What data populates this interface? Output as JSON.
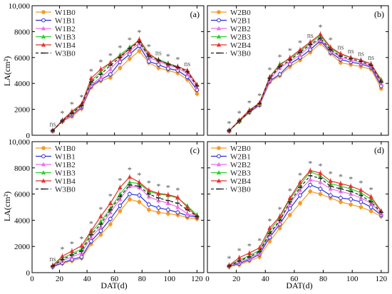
{
  "figure": {
    "ylabel": "LA(cm²)",
    "xlabel": "DAT(d)",
    "x_ticks": [
      0,
      20,
      40,
      60,
      80,
      100,
      120
    ],
    "y_ticks": [
      0,
      2000,
      4000,
      6000,
      8000,
      10000
    ],
    "y_tick_labels": [
      "0",
      "2000",
      "4000",
      "6000",
      "8000",
      "10,000"
    ]
  },
  "chart_data": [
    {
      "panel": "(a)",
      "type": "line",
      "xlim": [
        0,
        125
      ],
      "ylim": [
        0,
        10000
      ],
      "x": [
        15,
        22,
        29,
        36,
        43,
        50,
        57,
        64,
        71,
        78,
        85,
        92,
        99,
        106,
        113,
        120
      ],
      "series": [
        {
          "name": "W1B0",
          "color": "#f59a23",
          "marker": "circle-filled",
          "values": [
            350,
            1050,
            1450,
            2050,
            3700,
            4200,
            4450,
            5200,
            5900,
            6500,
            5600,
            5200,
            5000,
            4800,
            4300,
            3200
          ]
        },
        {
          "name": "W1B1",
          "color": "#2a2fd6",
          "marker": "circle-open",
          "values": [
            350,
            1100,
            1550,
            2150,
            3800,
            4300,
            4700,
            5650,
            6250,
            6900,
            5700,
            5450,
            5150,
            5000,
            4500,
            3500
          ]
        },
        {
          "name": "W1B2",
          "color": "#ee6fe6",
          "marker": "triangle",
          "values": [
            350,
            1100,
            1600,
            2200,
            3900,
            4450,
            5100,
            5900,
            6500,
            7100,
            6000,
            5700,
            5400,
            5200,
            4750,
            3700
          ]
        },
        {
          "name": "W1B3",
          "color": "#2fd02f",
          "marker": "triangle",
          "values": [
            350,
            1150,
            1750,
            2350,
            4200,
            4900,
            5600,
            6200,
            6800,
            7300,
            6200,
            5850,
            5550,
            5300,
            5000,
            3900
          ]
        },
        {
          "name": "W1B4",
          "color": "#e8312b",
          "marker": "triangle",
          "values": [
            350,
            1150,
            1850,
            2400,
            4400,
            5100,
            5600,
            6100,
            6650,
            7400,
            6300,
            5800,
            5500,
            5300,
            5000,
            3900
          ]
        },
        {
          "name": "W3B0",
          "color": "#222222",
          "marker": "dash",
          "values": [
            350,
            1100,
            1700,
            2300,
            4100,
            4700,
            5400,
            6000,
            6700,
            7200,
            6100,
            5800,
            5500,
            5250,
            4900,
            3800
          ]
        }
      ],
      "annotations": [
        "ns",
        "*",
        "*",
        "*",
        "*",
        "*",
        "*",
        "*",
        "*",
        "*",
        "*",
        "ns",
        "*",
        "*",
        "ns"
      ]
    },
    {
      "panel": "(b)",
      "type": "line",
      "xlim": [
        0,
        125
      ],
      "ylim": [
        0,
        10000
      ],
      "x": [
        15,
        22,
        29,
        36,
        43,
        50,
        57,
        64,
        71,
        78,
        85,
        92,
        99,
        106,
        113,
        120
      ],
      "series": [
        {
          "name": "W2B0",
          "color": "#f59a23",
          "marker": "circle-filled",
          "values": [
            350,
            1050,
            1750,
            2300,
            4100,
            4600,
            5300,
            5800,
            6400,
            7100,
            6300,
            5600,
            5450,
            5300,
            5100,
            3600
          ]
        },
        {
          "name": "W2B1",
          "color": "#2a2fd6",
          "marker": "circle-open",
          "values": [
            350,
            1100,
            1800,
            2350,
            4200,
            4700,
            5500,
            6000,
            6600,
            7300,
            6400,
            5850,
            5650,
            5500,
            5250,
            3800
          ]
        },
        {
          "name": "W2B2",
          "color": "#ee6fe6",
          "marker": "triangle",
          "values": [
            350,
            1100,
            1850,
            2400,
            4300,
            5200,
            5700,
            6200,
            6900,
            7400,
            6550,
            6000,
            5800,
            5600,
            5350,
            4000
          ]
        },
        {
          "name": "W2B3",
          "color": "#2fd02f",
          "marker": "triangle",
          "values": [
            350,
            1100,
            1900,
            2450,
            4500,
            5500,
            5900,
            6500,
            7100,
            7700,
            6700,
            6250,
            6000,
            5800,
            5500,
            4300
          ]
        },
        {
          "name": "W2B4",
          "color": "#e8312b",
          "marker": "triangle",
          "values": [
            350,
            1150,
            1950,
            2500,
            4500,
            5400,
            6000,
            6600,
            7200,
            7800,
            6800,
            6300,
            6000,
            5800,
            5500,
            4200
          ]
        },
        {
          "name": "W3B0",
          "color": "#222222",
          "marker": "dash",
          "values": [
            350,
            1100,
            1850,
            2450,
            4400,
            5300,
            5800,
            6400,
            7000,
            7500,
            6600,
            6100,
            5900,
            5700,
            5400,
            4100
          ]
        }
      ],
      "annotations": [
        "*",
        "*",
        "*",
        "*",
        "*",
        "*",
        "*",
        "*",
        "ns",
        "*",
        "*",
        "ns",
        "ns",
        "ns",
        "ns"
      ]
    },
    {
      "panel": "(c)",
      "type": "line",
      "xlim": [
        0,
        125
      ],
      "ylim": [
        0,
        10000
      ],
      "x": [
        15,
        22,
        29,
        36,
        43,
        50,
        57,
        64,
        71,
        78,
        85,
        92,
        99,
        106,
        113,
        120
      ],
      "series": [
        {
          "name": "W1B0",
          "color": "#f59a23",
          "marker": "circle-filled",
          "values": [
            450,
            700,
            900,
            1100,
            2200,
            2900,
            3700,
            4700,
            5600,
            5400,
            4800,
            4600,
            4500,
            4400,
            4200,
            4100
          ]
        },
        {
          "name": "W1B1",
          "color": "#2a2fd6",
          "marker": "circle-open",
          "values": [
            450,
            750,
            1000,
            1200,
            2400,
            3200,
            4100,
            5100,
            6000,
            5900,
            5200,
            4950,
            4800,
            4600,
            4350,
            4250
          ]
        },
        {
          "name": "W1B2",
          "color": "#ee6fe6",
          "marker": "triangle",
          "values": [
            500,
            900,
            1200,
            1500,
            2700,
            3500,
            4600,
            5600,
            6600,
            6500,
            5800,
            5500,
            5300,
            5000,
            4500,
            4300
          ]
        },
        {
          "name": "W1B3",
          "color": "#2fd02f",
          "marker": "triangle",
          "values": [
            550,
            1100,
            1450,
            1800,
            3100,
            3900,
            4900,
            6000,
            6900,
            6800,
            6200,
            6000,
            5900,
            5700,
            5100,
            4400
          ]
        },
        {
          "name": "W1B4",
          "color": "#e8312b",
          "marker": "triangle",
          "values": [
            550,
            1250,
            1650,
            2050,
            3200,
            4300,
            5300,
            6500,
            7300,
            6900,
            6300,
            6050,
            5950,
            5750,
            5000,
            4300
          ]
        },
        {
          "name": "W3B0",
          "color": "#222222",
          "marker": "dash",
          "values": [
            500,
            1000,
            1350,
            1650,
            2900,
            3700,
            4800,
            5800,
            6700,
            6600,
            6000,
            5700,
            5500,
            5300,
            4800,
            4300
          ]
        }
      ],
      "annotations": [
        "ns",
        "*",
        "*",
        "*",
        "*",
        "*",
        "*",
        "*",
        "*",
        "*",
        "*",
        "*",
        "*",
        "*"
      ]
    },
    {
      "panel": "(d)",
      "type": "line",
      "xlim": [
        0,
        125
      ],
      "ylim": [
        0,
        10000
      ],
      "x": [
        15,
        22,
        29,
        36,
        43,
        50,
        57,
        64,
        71,
        78,
        85,
        92,
        99,
        106,
        113,
        120
      ],
      "series": [
        {
          "name": "W2B0",
          "color": "#f59a23",
          "marker": "circle-filled",
          "values": [
            450,
            600,
            900,
            1200,
            2400,
            3400,
            4400,
            5300,
            6200,
            6000,
            5700,
            5400,
            5200,
            5000,
            4700,
            4300
          ]
        },
        {
          "name": "W2B1",
          "color": "#2a2fd6",
          "marker": "circle-open",
          "values": [
            500,
            700,
            1000,
            1400,
            2700,
            3700,
            4900,
            5900,
            6700,
            6400,
            5900,
            5700,
            5600,
            5400,
            5000,
            4400
          ]
        },
        {
          "name": "W2B2",
          "color": "#ee6fe6",
          "marker": "triangle",
          "values": [
            500,
            800,
            1100,
            1500,
            2900,
            3900,
            5300,
            6300,
            7100,
            6900,
            6400,
            6200,
            6000,
            5700,
            5300,
            4500
          ]
        },
        {
          "name": "W2B3",
          "color": "#2fd02f",
          "marker": "triangle",
          "values": [
            550,
            950,
            1300,
            1700,
            3200,
            4200,
            5600,
            6700,
            7700,
            7400,
            6800,
            6600,
            6400,
            6100,
            5600,
            4700
          ]
        },
        {
          "name": "W2B4",
          "color": "#e8312b",
          "marker": "triangle",
          "values": [
            550,
            1150,
            1500,
            1900,
            3400,
            4300,
            5700,
            6900,
            7800,
            7600,
            7000,
            6800,
            6600,
            6300,
            5800,
            4700
          ]
        },
        {
          "name": "W3B0",
          "color": "#222222",
          "marker": "dash",
          "values": [
            500,
            900,
            1200,
            1600,
            3000,
            4000,
            5400,
            6500,
            7400,
            7200,
            6600,
            6400,
            6200,
            5900,
            5400,
            4600
          ]
        }
      ],
      "annotations": [
        "*",
        "*",
        "*",
        "*",
        "*",
        "*",
        "*",
        "*",
        "*",
        "*",
        "*",
        "*",
        "*",
        "*",
        "*"
      ]
    }
  ]
}
